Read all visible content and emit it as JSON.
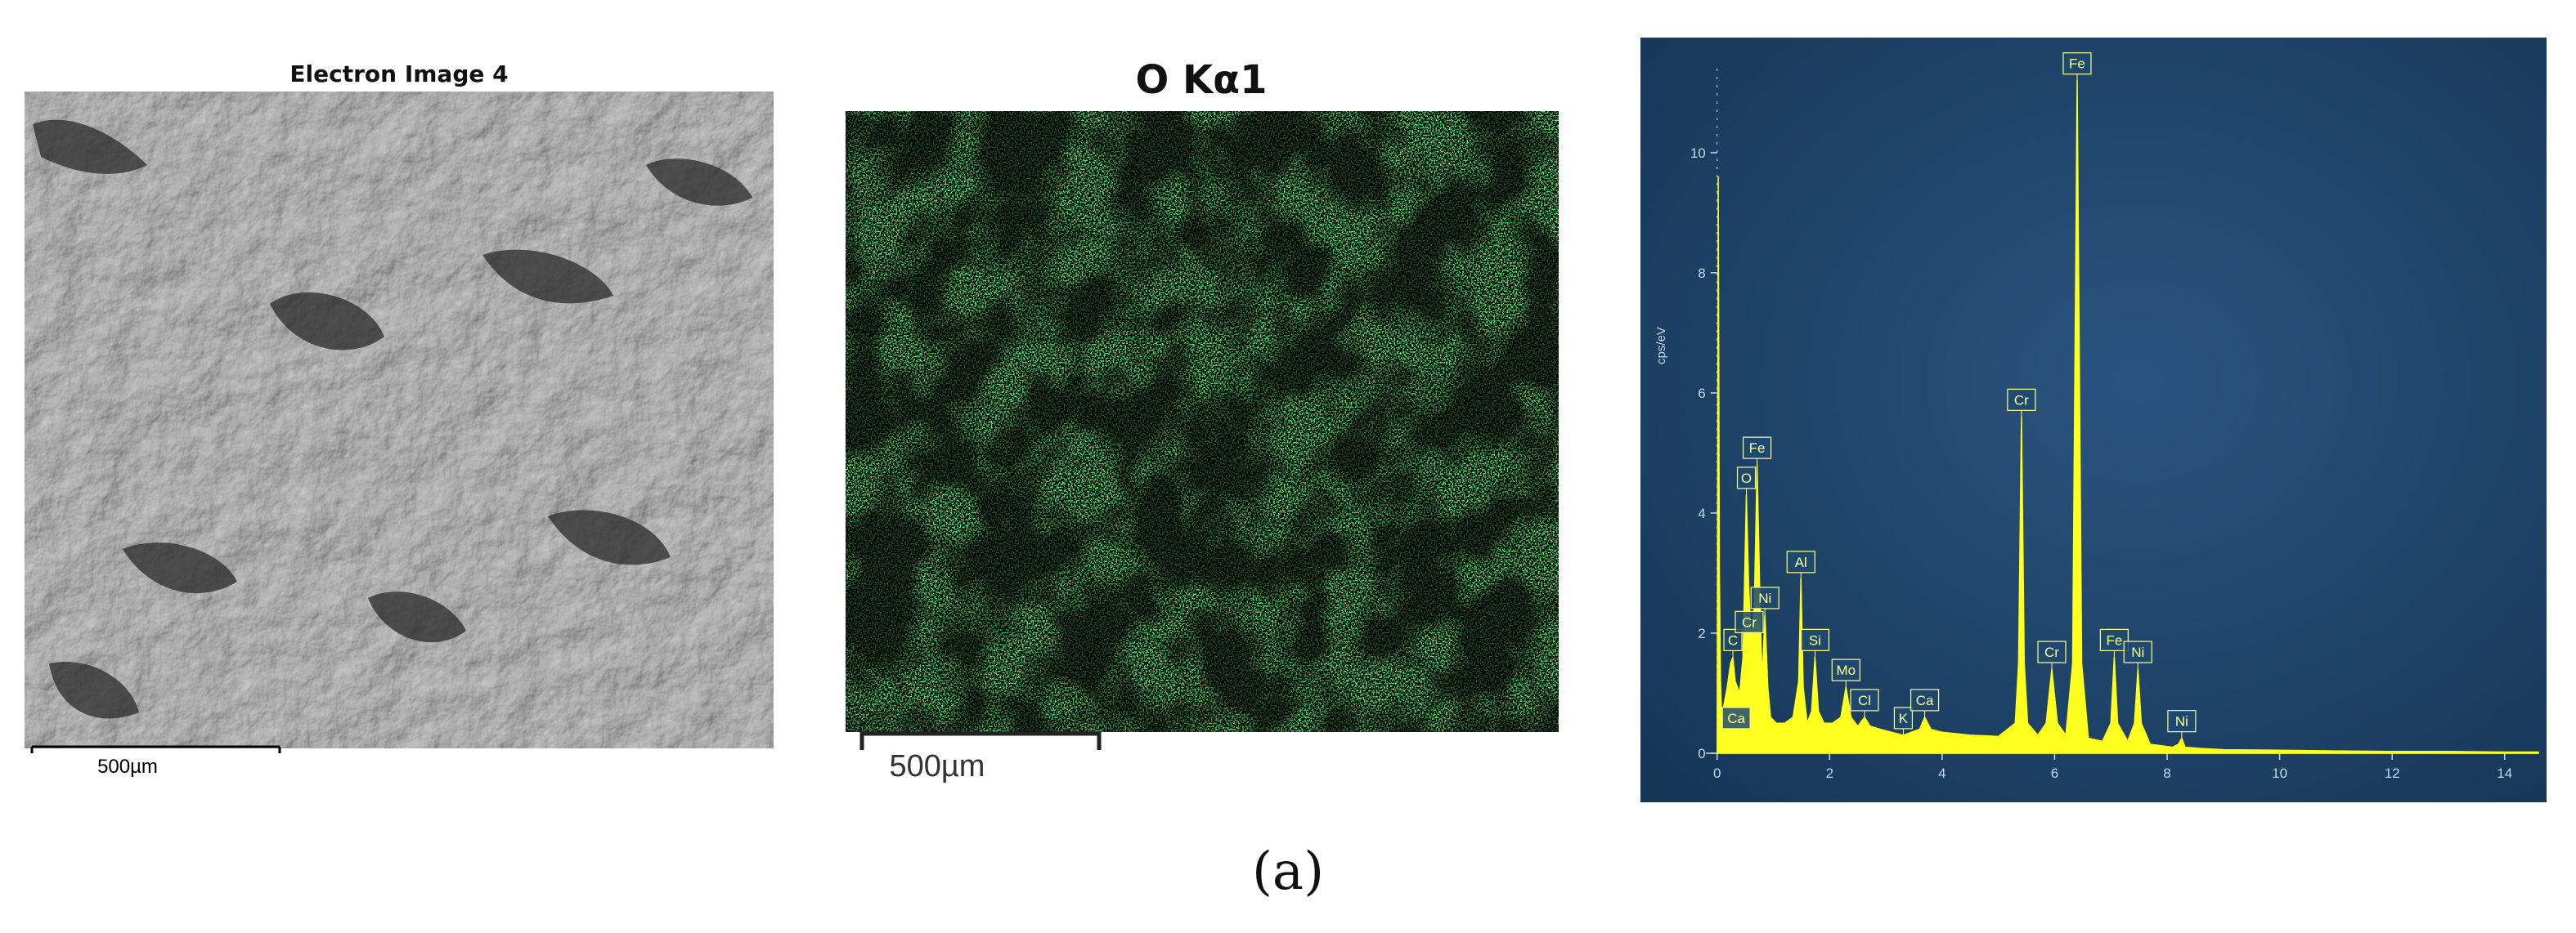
{
  "figure": {
    "sublabel": "(a)",
    "colors": {
      "map_signal": "#33d43a",
      "spectrum_fill": "#ffff1f",
      "spectrum_bg": "#1c4368",
      "label_text": "#ffff8a",
      "axis_text": "#c8d8e8"
    }
  },
  "sem_panel": {
    "title": "Electron Image 4",
    "scale_label": "500µm"
  },
  "map_panel": {
    "title": "O Kα1",
    "scale_label": "500µm"
  },
  "chart_data": {
    "type": "line",
    "ylabel": "cps/eV",
    "xlim": [
      -0.2,
      14.6
    ],
    "ylim": [
      0,
      11.4
    ],
    "x_ticks": [
      0,
      2,
      4,
      6,
      8,
      10,
      12,
      14
    ],
    "y_ticks": [
      0,
      2,
      4,
      6,
      8,
      10
    ],
    "peaks": [
      {
        "label": "C",
        "x": 0.28,
        "y": 1.6
      },
      {
        "label": "O",
        "x": 0.52,
        "y": 4.3
      },
      {
        "label": "Cr",
        "x": 0.57,
        "y": 1.9
      },
      {
        "label": "Fe",
        "x": 0.71,
        "y": 4.8
      },
      {
        "label": "Ni",
        "x": 0.85,
        "y": 2.3
      },
      {
        "label": "Al",
        "x": 1.49,
        "y": 2.9
      },
      {
        "label": "Si",
        "x": 1.74,
        "y": 1.6
      },
      {
        "label": "Mo",
        "x": 2.29,
        "y": 1.1
      },
      {
        "label": "Cl",
        "x": 2.62,
        "y": 0.6
      },
      {
        "label": "K",
        "x": 3.31,
        "y": 0.3
      },
      {
        "label": "Ca",
        "x": 3.69,
        "y": 0.6
      },
      {
        "label": "Cr",
        "x": 5.41,
        "y": 5.6
      },
      {
        "label": "Cr",
        "x": 5.95,
        "y": 1.4
      },
      {
        "label": "Fe",
        "x": 6.4,
        "y": 11.2
      },
      {
        "label": "Fe",
        "x": 7.06,
        "y": 1.6
      },
      {
        "label": "Ni",
        "x": 7.48,
        "y": 1.4
      },
      {
        "label": "Ni",
        "x": 8.26,
        "y": 0.25
      },
      {
        "label": "Ca",
        "x": 0.34,
        "y": 0.3
      }
    ],
    "series": [
      {
        "x": [
          0.0,
          0.01,
          0.02,
          0.04,
          0.06,
          0.08,
          0.12,
          0.18,
          0.24,
          0.28,
          0.32,
          0.4,
          0.46,
          0.52,
          0.56,
          0.6,
          0.66,
          0.71,
          0.76,
          0.8,
          0.85,
          0.9,
          0.95,
          1.05,
          1.2,
          1.35,
          1.45,
          1.49,
          1.53,
          1.6,
          1.68,
          1.74,
          1.8,
          1.9,
          2.05,
          2.2,
          2.29,
          2.38,
          2.5,
          2.62,
          2.72,
          2.9,
          3.1,
          3.31,
          3.45,
          3.6,
          3.69,
          3.8,
          4.0,
          4.5,
          5.0,
          5.3,
          5.36,
          5.41,
          5.46,
          5.52,
          5.7,
          5.85,
          5.95,
          6.05,
          6.2,
          6.32,
          6.4,
          6.48,
          6.6,
          6.85,
          7.0,
          7.06,
          7.12,
          7.3,
          7.42,
          7.48,
          7.54,
          7.7,
          8.1,
          8.2,
          8.26,
          8.32,
          8.6,
          9.0,
          10.0,
          11.0,
          12.0,
          13.0,
          14.0,
          14.6
        ],
        "y": [
          0.0,
          4.2,
          9.6,
          3.0,
          1.2,
          0.6,
          0.8,
          1.1,
          1.5,
          1.6,
          1.2,
          1.0,
          1.6,
          4.3,
          2.8,
          1.9,
          2.4,
          4.8,
          2.6,
          1.2,
          2.3,
          1.1,
          0.6,
          0.5,
          0.5,
          0.6,
          1.2,
          2.9,
          1.1,
          0.5,
          0.7,
          1.6,
          0.7,
          0.5,
          0.5,
          0.6,
          1.1,
          0.6,
          0.45,
          0.6,
          0.45,
          0.4,
          0.35,
          0.3,
          0.35,
          0.4,
          0.6,
          0.4,
          0.35,
          0.3,
          0.28,
          0.5,
          1.5,
          5.6,
          1.5,
          0.5,
          0.3,
          0.5,
          1.4,
          0.5,
          0.3,
          1.5,
          11.2,
          1.5,
          0.25,
          0.2,
          0.5,
          1.6,
          0.5,
          0.2,
          0.5,
          1.4,
          0.5,
          0.15,
          0.1,
          0.15,
          0.25,
          0.1,
          0.08,
          0.06,
          0.05,
          0.04,
          0.03,
          0.03,
          0.02,
          0.02
        ]
      }
    ]
  }
}
